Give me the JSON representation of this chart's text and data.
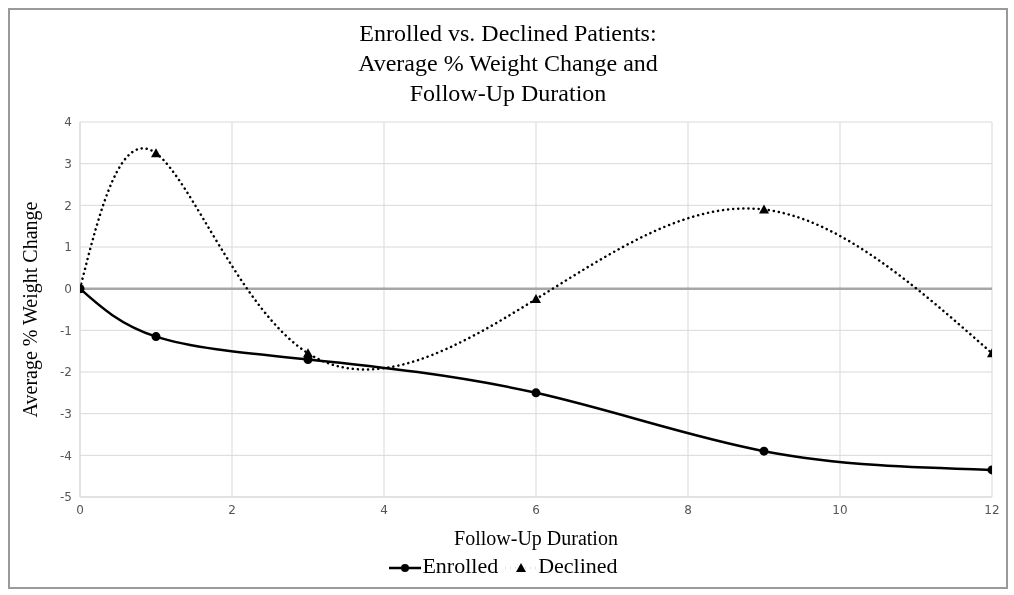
{
  "chart_data": {
    "type": "line",
    "title": "Enrolled vs. Declined Patients:\nAverage % Weight Change and\nFollow-Up Duration",
    "xlabel": "Follow-Up Duration",
    "ylabel": "Average % Weight Change",
    "x": [
      0,
      1,
      3,
      6,
      9,
      12
    ],
    "series": [
      {
        "name": "Enrolled",
        "color": "#000000",
        "values": [
          0,
          -1.15,
          -1.7,
          -2.5,
          -3.9,
          -4.35
        ],
        "marker": "circle",
        "line_style": "solid"
      },
      {
        "name": "Declined",
        "color": "#000000",
        "values": [
          0,
          3.25,
          -1.55,
          -0.25,
          1.9,
          -1.55
        ],
        "marker": "triangle",
        "line_style": "dotted"
      }
    ],
    "xlim": [
      0,
      12
    ],
    "xticks": [
      0,
      2,
      4,
      6,
      8,
      10,
      12
    ],
    "ylim": [
      -5,
      4
    ],
    "yticks": [
      -5,
      -4,
      -3,
      -2,
      -1,
      0,
      1,
      2,
      3,
      4
    ],
    "ref_lines": [
      {
        "axis": "y",
        "value": 0,
        "color": "#a6a6a6"
      }
    ],
    "grid": true,
    "legend": "bottom"
  }
}
